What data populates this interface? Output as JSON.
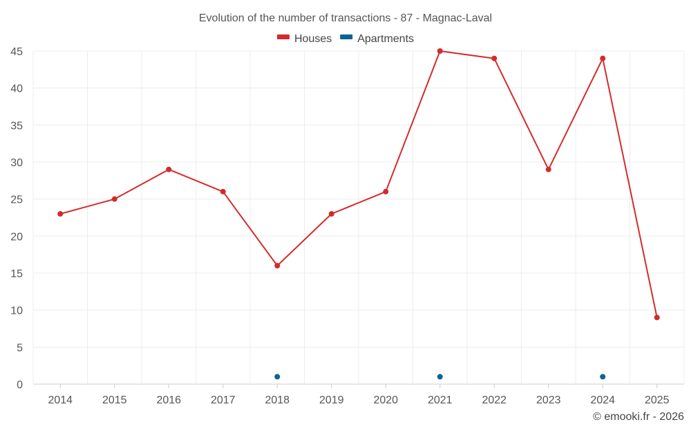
{
  "chart_data": {
    "type": "line",
    "title": "Evolution of the number of transactions - 87 - Magnac-Laval",
    "categories": [
      "2014",
      "2015",
      "2016",
      "2017",
      "2018",
      "2019",
      "2020",
      "2021",
      "2022",
      "2023",
      "2024",
      "2025"
    ],
    "series": [
      {
        "name": "Houses",
        "color": "#d42a2a",
        "values": [
          23,
          25,
          29,
          26,
          16,
          23,
          26,
          45,
          44,
          29,
          44,
          9
        ]
      },
      {
        "name": "Apartments",
        "color": "#0b6394",
        "values": [
          null,
          null,
          null,
          null,
          1,
          null,
          null,
          1,
          null,
          null,
          1,
          null
        ]
      }
    ],
    "ylim": [
      0,
      45
    ],
    "yticks": [
      0,
      5,
      10,
      15,
      20,
      25,
      30,
      35,
      40,
      45
    ],
    "xlabel": "",
    "ylabel": "",
    "grid": true,
    "legend_position": "top-center"
  },
  "credit": "© emooki.fr - 2026"
}
